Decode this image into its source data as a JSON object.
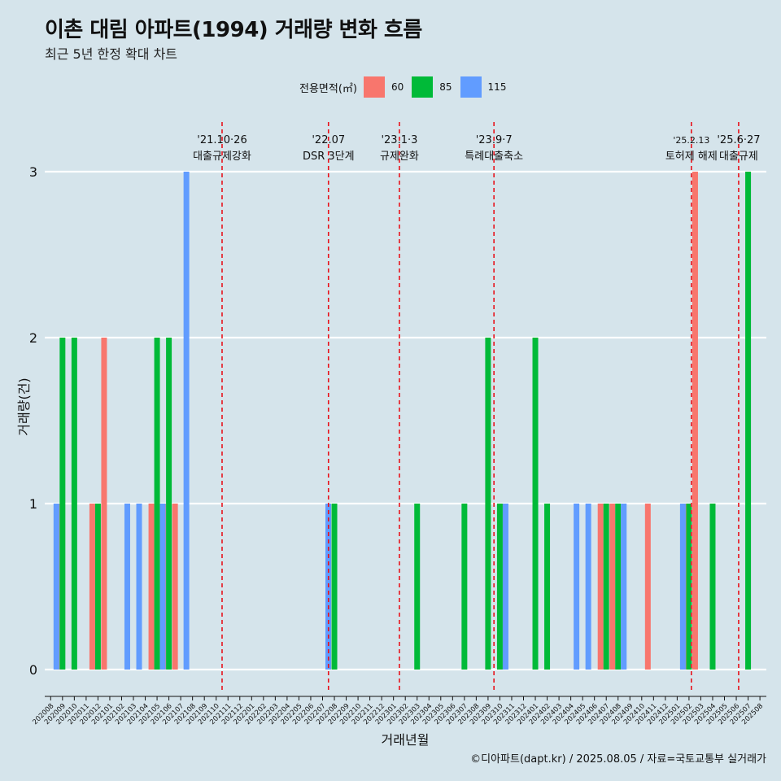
{
  "title": "이촌 대림 아파트(1994) 거래량 변화 흐름",
  "subtitle": "최근 5년 한정 확대 차트",
  "caption": "©디아파트(dapt.kr) / 2025.08.05 / 자료=국토교통부 실거래가",
  "colors": {
    "background": "#d5e4eb",
    "gridline": "#ffffff",
    "event_line": "#e8121b",
    "series_60": "#f8766d",
    "series_85": "#00ba38",
    "series_115": "#619cff"
  },
  "chart_data": {
    "type": "bar",
    "title": "이촌 대림 아파트(1994) 거래량 변화 흐름",
    "subtitle": "최근 5년 한정 확대 차트",
    "xlabel": "거래년월",
    "ylabel": "거래량(건)",
    "ylim": [
      0,
      3
    ],
    "yticks": [
      0,
      1,
      2,
      3
    ],
    "grid": true,
    "legend_title": "전용면적(㎡)",
    "legend_position": "top",
    "categories": [
      "202008",
      "202009",
      "202010",
      "202011",
      "202012",
      "202101",
      "202102",
      "202103",
      "202104",
      "202105",
      "202106",
      "202107",
      "202108",
      "202109",
      "202110",
      "202111",
      "202112",
      "202201",
      "202202",
      "202203",
      "202204",
      "202205",
      "202206",
      "202207",
      "202208",
      "202209",
      "202210",
      "202211",
      "202212",
      "202301",
      "202302",
      "202303",
      "202304",
      "202305",
      "202306",
      "202307",
      "202308",
      "202309",
      "202310",
      "202311",
      "202312",
      "202401",
      "202402",
      "202403",
      "202404",
      "202405",
      "202406",
      "202407",
      "202408",
      "202409",
      "202410",
      "202411",
      "202412",
      "202501",
      "202502",
      "202503",
      "202504",
      "202505",
      "202506",
      "202507",
      "202508"
    ],
    "series": [
      {
        "name": "60",
        "color": "#f8766d",
        "values": [
          0,
          1,
          0,
          0,
          1,
          2,
          0,
          0,
          0,
          1,
          1,
          1,
          0,
          0,
          0,
          0,
          0,
          0,
          0,
          0,
          0,
          0,
          0,
          0,
          0,
          0,
          0,
          0,
          0,
          0,
          0,
          0,
          0,
          0,
          0,
          0,
          0,
          0,
          0,
          0,
          0,
          0,
          0,
          0,
          0,
          0,
          0,
          1,
          1,
          0,
          0,
          1,
          0,
          0,
          1,
          3,
          0,
          0,
          0,
          0,
          0
        ]
      },
      {
        "name": "85",
        "color": "#00ba38",
        "values": [
          0,
          2,
          2,
          0,
          1,
          0,
          0,
          0,
          0,
          2,
          2,
          0,
          0,
          0,
          0,
          0,
          0,
          0,
          0,
          0,
          0,
          0,
          0,
          0,
          1,
          0,
          0,
          0,
          0,
          0,
          0,
          1,
          0,
          0,
          0,
          1,
          0,
          2,
          1,
          0,
          0,
          2,
          1,
          0,
          0,
          0,
          0,
          1,
          1,
          0,
          0,
          0,
          0,
          0,
          1,
          0,
          1,
          0,
          0,
          3,
          0
        ]
      },
      {
        "name": "115",
        "color": "#619cff",
        "values": [
          1,
          0,
          0,
          0,
          0,
          0,
          1,
          1,
          0,
          1,
          0,
          3,
          0,
          0,
          0,
          0,
          0,
          0,
          0,
          0,
          0,
          0,
          0,
          1,
          0,
          0,
          0,
          0,
          0,
          0,
          0,
          0,
          0,
          0,
          0,
          0,
          0,
          0,
          1,
          0,
          0,
          0,
          0,
          0,
          1,
          1,
          0,
          0,
          1,
          0,
          0,
          0,
          0,
          1,
          0,
          0,
          0,
          0,
          0,
          0,
          0
        ]
      }
    ],
    "events": [
      {
        "position": 14.5,
        "date": "'21.10·26",
        "label": "대출규제강화"
      },
      {
        "position": 23.5,
        "date": "'22.07",
        "label": "DSR 3단계"
      },
      {
        "position": 29.5,
        "date": "'23.1·3",
        "label": "규제완화"
      },
      {
        "position": 37.5,
        "date": "'23.9·7",
        "label": "특례대출축소"
      },
      {
        "position": 54.2,
        "date": "'25.2.13",
        "label": "토허제 해제"
      },
      {
        "position": 58.2,
        "date": "'25.6·27",
        "label": "대출규제"
      }
    ]
  }
}
